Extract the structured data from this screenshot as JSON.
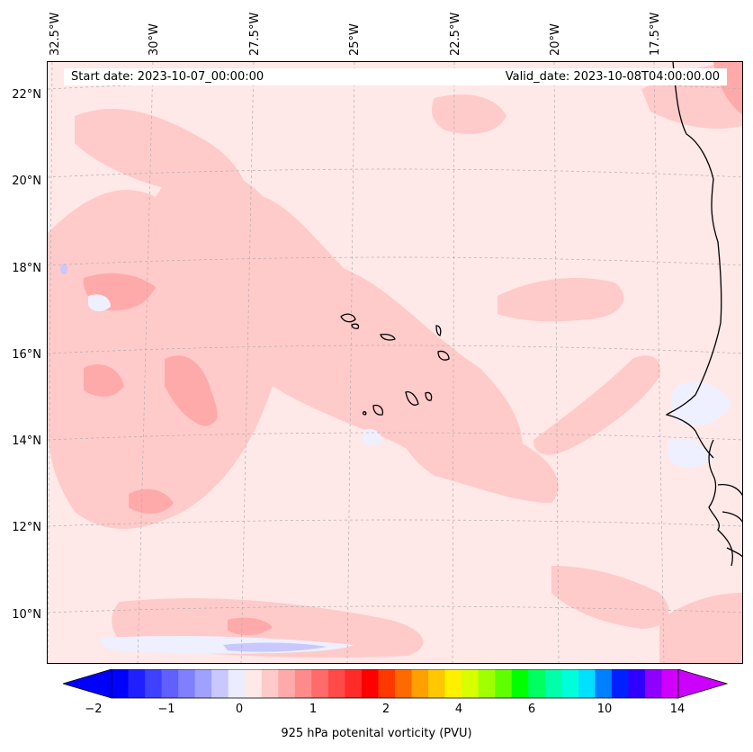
{
  "map": {
    "start_date": "Start date: 2023-10-07_00:00:00",
    "valid_date": "Valid_date: 2023-10-08T04:00:00.00",
    "lon_labels": [
      "32.5°W",
      "30°W",
      "27.5°W",
      "25°W",
      "22.5°W",
      "20°W",
      "17.5°W"
    ],
    "lat_labels": [
      "22°N",
      "20°N",
      "18°N",
      "16°N",
      "14°N",
      "12°N",
      "10°N"
    ],
    "grid_lines": true,
    "colors": {
      "background": "#ffe8e8",
      "light_red": "#ffcaca",
      "mid_red": "#ffaaaa",
      "light_blue": "#eef0ff",
      "coastline": "#000000"
    }
  },
  "colorbar": {
    "label": "925 hPa potenital vorticity (PVU)",
    "ticks": [
      "−2",
      "−1",
      "0",
      "1",
      "2",
      "4",
      "6",
      "10",
      "14"
    ],
    "colors": [
      "#0000ff",
      "#2020ff",
      "#4040ff",
      "#6060ff",
      "#8080ff",
      "#a0a0ff",
      "#c8c8ff",
      "#ececff",
      "#ffe8e8",
      "#ffcaca",
      "#ffaaaa",
      "#ff8a8a",
      "#ff6a6a",
      "#ff4a4a",
      "#ff2a2a",
      "#ff0000",
      "#ff3800",
      "#ff6a00",
      "#ffa000",
      "#ffc800",
      "#fff000",
      "#d8ff00",
      "#a0ff00",
      "#60ff00",
      "#00ff00",
      "#00ff60",
      "#00ffa8",
      "#00ffd8",
      "#00e0ff",
      "#0080ff",
      "#0020ff",
      "#3000ff",
      "#9000ff",
      "#d000ff"
    ],
    "arrow_low": "#0000ff",
    "arrow_high": "#cc00ff"
  }
}
